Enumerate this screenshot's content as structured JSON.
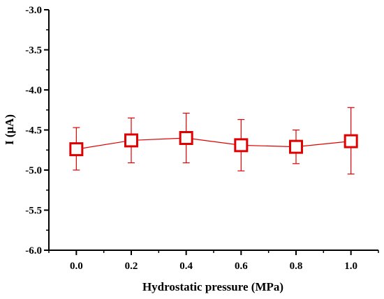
{
  "chart_data": {
    "type": "scatter",
    "title": "",
    "xlabel": "Hydrostatic pressure (MPa)",
    "ylabel": "I (μA)",
    "x_tick_labels": [
      "0.0",
      "0.2",
      "0.4",
      "0.6",
      "0.8",
      "1.0"
    ],
    "y_tick_labels": [
      "-3.0",
      "-3.5",
      "-4.0",
      "-4.5",
      "-5.0",
      "-5.5",
      "-6.0"
    ],
    "xlim": [
      -0.1,
      1.1
    ],
    "ylim": [
      -6.0,
      -3.0
    ],
    "grid": false,
    "legend": false,
    "series": [
      {
        "color": "#e00000",
        "marker": "open-square",
        "connected": true,
        "x": [
          0.0,
          0.2,
          0.4,
          0.6,
          0.8,
          1.0
        ],
        "y": [
          -4.74,
          -4.63,
          -4.6,
          -4.69,
          -4.71,
          -4.64
        ],
        "error_upper": [
          -4.47,
          -4.35,
          -4.29,
          -4.37,
          -4.5,
          -4.22
        ],
        "error_lower": [
          -5.0,
          -4.91,
          -4.91,
          -5.01,
          -4.92,
          -5.05
        ]
      }
    ]
  }
}
